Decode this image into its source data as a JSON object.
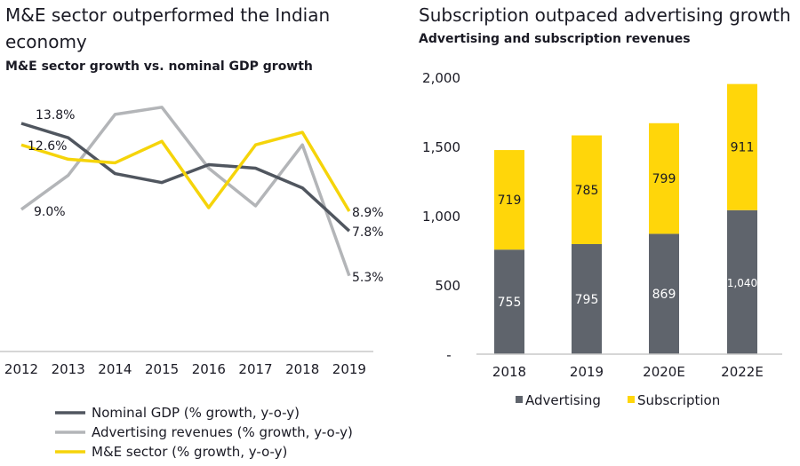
{
  "left_panel": {
    "title": "M&E sector outperformed the Indian economy",
    "subtitle": "M&E sector growth vs. nominal GDP growth"
  },
  "right_panel": {
    "title": "Subscription outpaced advertising growth",
    "subtitle": "Advertising and subscription revenues"
  },
  "colors": {
    "gdp": "#50565f",
    "advertising_line": "#b3b5b8",
    "me_sector": "#f5d40a",
    "advertising_bar": "#5f646c",
    "subscription_bar": "#ffd60a",
    "axis": "#c8c8c8"
  },
  "chart_data": [
    {
      "type": "line",
      "title": "M&E sector growth vs. nominal GDP growth",
      "xlabel": "",
      "ylabel": "",
      "x": [
        "2012",
        "2013",
        "2014",
        "2015",
        "2016",
        "2017",
        "2018",
        "2019"
      ],
      "ylim": [
        3,
        16
      ],
      "grid": false,
      "legend_position": "bottom",
      "series": [
        {
          "name": "Nominal GDP (% growth, y-o-y)",
          "key": "gdp",
          "values": [
            13.8,
            13.0,
            11.0,
            10.5,
            11.5,
            11.3,
            10.2,
            7.8
          ],
          "labels": {
            "0": "13.8%",
            "7": "7.8%"
          }
        },
        {
          "name": "Advertising revenues (% growth, y-o-y)",
          "key": "advertising_line",
          "values": [
            9.0,
            10.9,
            14.3,
            14.7,
            11.3,
            9.2,
            12.6,
            5.3
          ],
          "labels": {
            "0": "9.0%",
            "7": "5.3%"
          }
        },
        {
          "name": "M&E sector (% growth, y-o-y)",
          "key": "me_sector",
          "values": [
            12.6,
            11.8,
            11.6,
            12.8,
            9.1,
            12.6,
            13.3,
            8.9
          ],
          "labels": {
            "0": "12.6%",
            "7": "8.9%"
          }
        }
      ]
    },
    {
      "type": "bar",
      "stacked": true,
      "title": "Advertising and subscription revenues",
      "xlabel": "",
      "ylabel": "",
      "categories": [
        "2018",
        "2019",
        "2020E",
        "2022E"
      ],
      "ylim": [
        0,
        2000
      ],
      "yticks": [
        0,
        500,
        1000,
        1500,
        2000
      ],
      "ytick_labels": [
        "-",
        "500",
        "1,000",
        "1,500",
        "2,000"
      ],
      "grid": false,
      "legend_position": "bottom",
      "series": [
        {
          "name": "Advertising",
          "key": "advertising_bar",
          "values": [
            755,
            795,
            869,
            1040
          ],
          "labels": [
            "755",
            "795",
            "869",
            "1,040"
          ]
        },
        {
          "name": "Subscription",
          "key": "subscription_bar",
          "values": [
            719,
            785,
            799,
            911
          ],
          "labels": [
            "719",
            "785",
            "799",
            "911"
          ]
        }
      ]
    }
  ]
}
